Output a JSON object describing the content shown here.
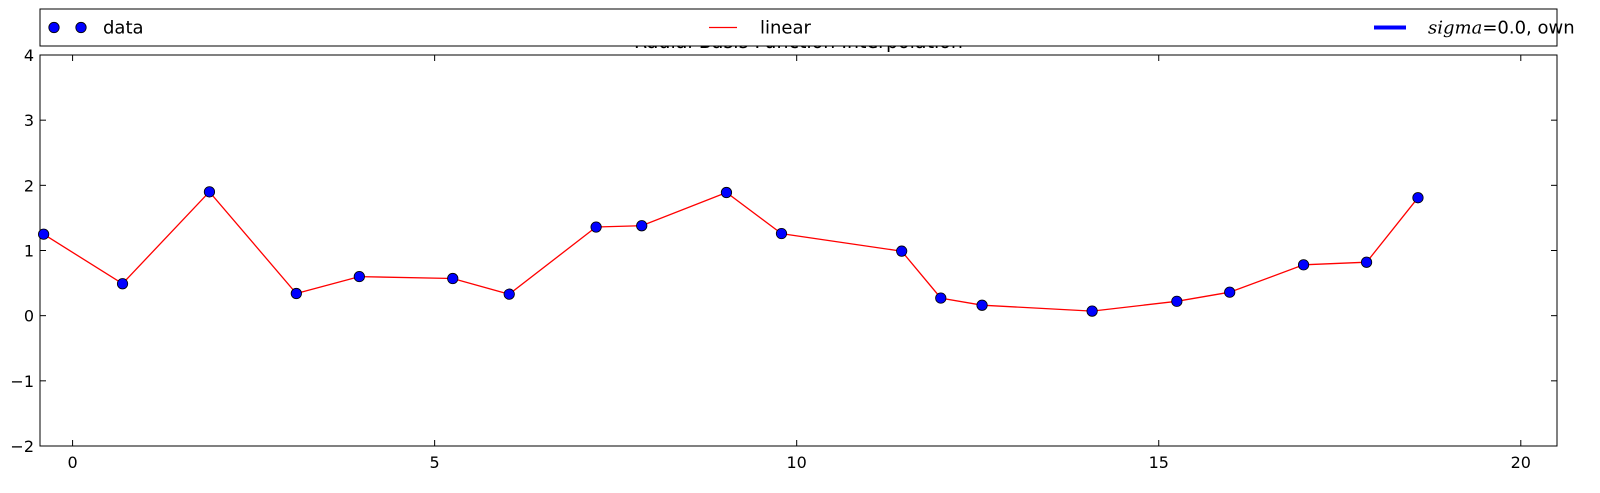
{
  "chart_data": {
    "type": "line",
    "title": "Radial Basis Function Interpolation",
    "xlabel": "",
    "ylabel": "",
    "xlim": [
      -0.45,
      20.5
    ],
    "ylim": [
      -2,
      4
    ],
    "xticks": [
      0,
      5,
      10,
      15,
      20
    ],
    "yticks": [
      -2,
      -1,
      0,
      1,
      2,
      3,
      4
    ],
    "xtick_labels": [
      "0",
      "5",
      "10",
      "15",
      "20"
    ],
    "ytick_labels": [
      "−2",
      "−1",
      "0",
      "1",
      "2",
      "3",
      "4"
    ],
    "grid": false,
    "legend_position": "top, across full width (outside axes)",
    "legend": [
      {
        "label": "data",
        "marker": "circle",
        "color": "#0000ff"
      },
      {
        "label": "linear",
        "line": "solid-thin",
        "color": "#ff0000"
      },
      {
        "label_math": "sigma",
        "label_rest": "=0.0, own",
        "line": "solid-thick",
        "color": "#0000ff"
      }
    ],
    "series": [
      {
        "name": "data",
        "style": "markers",
        "color": "#0000ff",
        "x": [
          -0.4,
          0.69,
          1.89,
          3.09,
          3.96,
          5.25,
          6.03,
          7.23,
          7.86,
          9.03,
          9.79,
          11.45,
          11.99,
          12.56,
          14.08,
          15.25,
          15.98,
          17.0,
          17.87,
          18.58
        ],
        "y": [
          1.25,
          0.49,
          1.9,
          0.34,
          0.6,
          0.57,
          0.33,
          1.36,
          1.38,
          1.89,
          1.26,
          0.99,
          0.27,
          0.16,
          0.07,
          0.22,
          0.36,
          0.78,
          0.82,
          1.81
        ]
      },
      {
        "name": "linear",
        "style": "line",
        "color": "#ff0000",
        "x": [
          -0.4,
          0.69,
          1.89,
          3.09,
          3.96,
          5.25,
          6.03,
          7.23,
          7.86,
          9.03,
          9.79,
          11.45,
          11.99,
          12.56,
          14.08,
          15.25,
          15.98,
          17.0,
          17.87,
          18.58
        ],
        "y": [
          1.25,
          0.49,
          1.9,
          0.34,
          0.6,
          0.57,
          0.33,
          1.36,
          1.38,
          1.89,
          1.26,
          0.99,
          0.27,
          0.16,
          0.07,
          0.22,
          0.36,
          0.78,
          0.82,
          1.81
        ]
      }
    ]
  }
}
